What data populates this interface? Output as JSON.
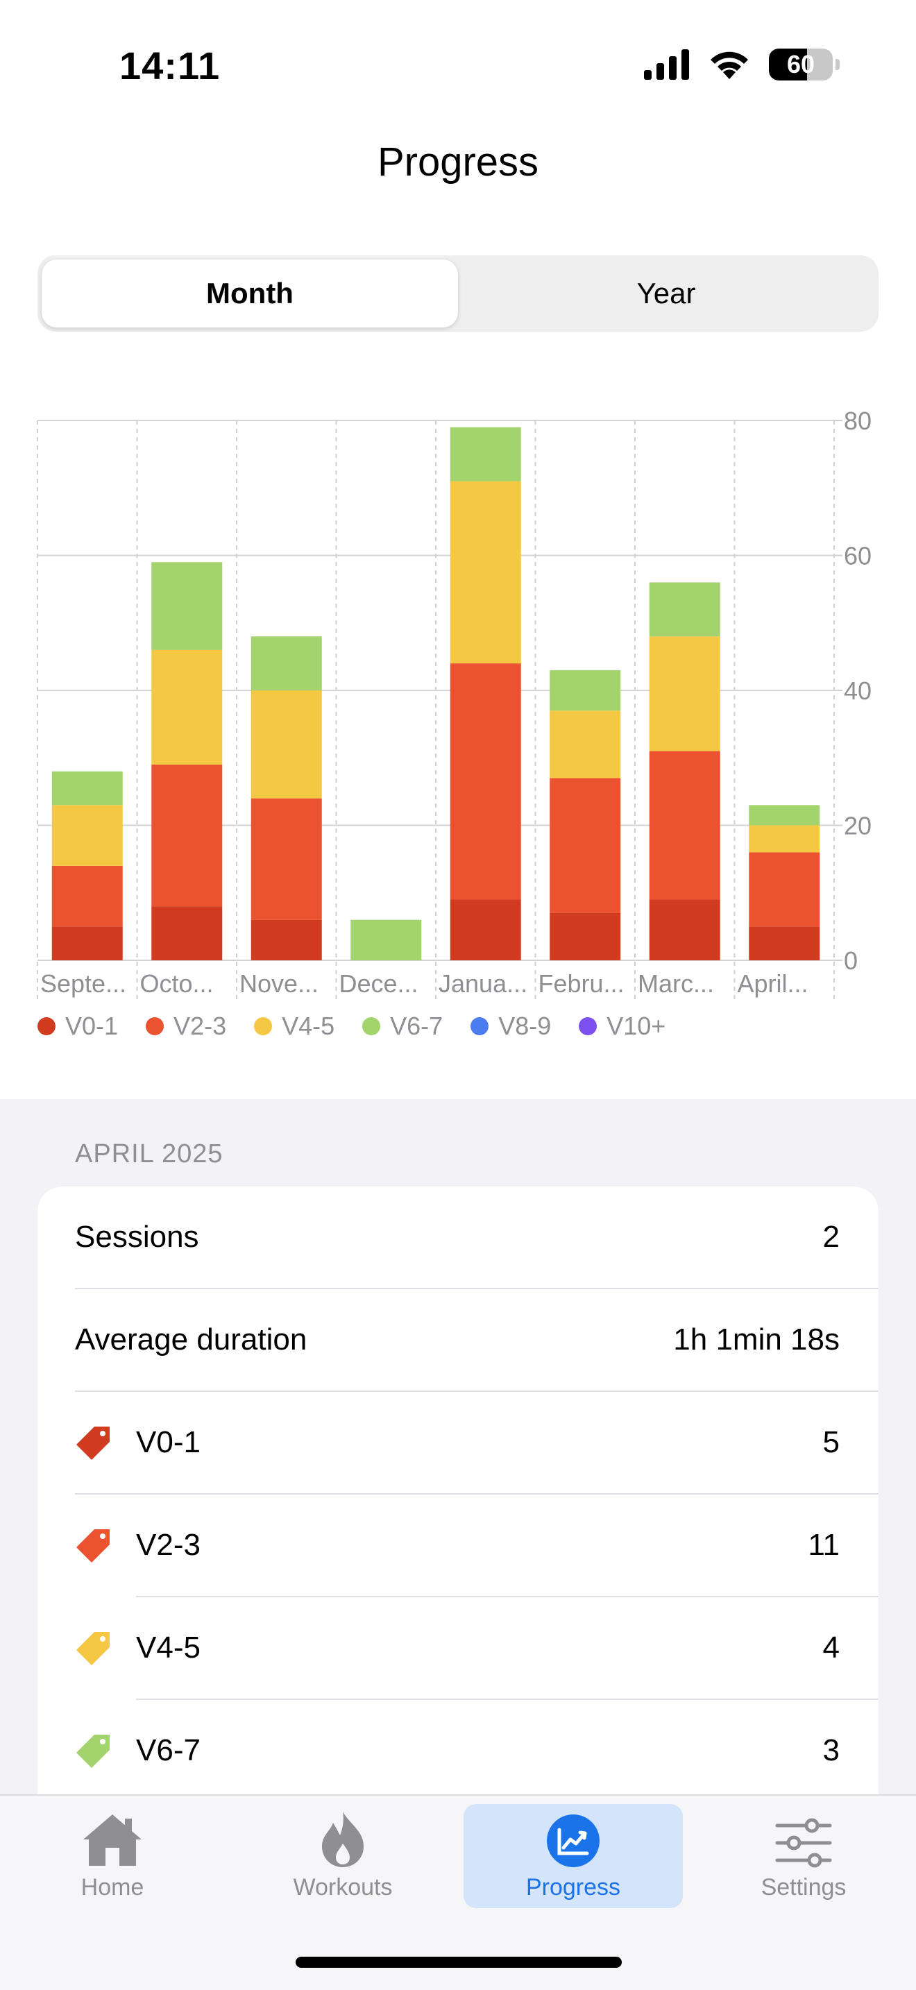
{
  "status_bar": {
    "time": "14:11",
    "battery": "60",
    "battery_level": 0.6
  },
  "page": {
    "title": "Progress"
  },
  "segmented": {
    "options": [
      "Month",
      "Year"
    ],
    "selected": "Month"
  },
  "chart_data": {
    "type": "bar",
    "stacked": true,
    "categories": [
      "Septe...",
      "Octo...",
      "Nove...",
      "Dece...",
      "Janua...",
      "Febru...",
      "Marc...",
      "April..."
    ],
    "series": [
      {
        "name": "V0-1",
        "color": "#d13b20",
        "values": [
          5,
          8,
          6,
          0,
          9,
          7,
          9,
          5
        ]
      },
      {
        "name": "V2-3",
        "color": "#ea5230",
        "values": [
          9,
          21,
          18,
          0,
          35,
          20,
          22,
          11
        ]
      },
      {
        "name": "V4-5",
        "color": "#f5c843",
        "values": [
          9,
          17,
          16,
          0,
          27,
          10,
          17,
          4
        ]
      },
      {
        "name": "V6-7",
        "color": "#a3d36d",
        "values": [
          5,
          13,
          8,
          6,
          8,
          6,
          8,
          3
        ]
      },
      {
        "name": "V8-9",
        "color": "#4b7cf0",
        "values": [
          0,
          0,
          0,
          0,
          0,
          0,
          0,
          0
        ]
      },
      {
        "name": "V10+",
        "color": "#7b4ff0",
        "values": [
          0,
          0,
          0,
          0,
          0,
          0,
          0,
          0
        ]
      }
    ],
    "ylim": [
      0,
      80
    ],
    "yticks": [
      0,
      20,
      40,
      60,
      80
    ],
    "y_axis_position": "right",
    "grid": true,
    "legend_position": "bottom-left"
  },
  "stats": {
    "section_header": "APRIL 2025",
    "rows": [
      {
        "label": "Sessions",
        "value": "2"
      },
      {
        "label": "Average duration",
        "value": "1h 1min 18s"
      }
    ],
    "grade_rows": [
      {
        "label": "V0-1",
        "value": "5",
        "color": "#d13b20"
      },
      {
        "label": "V2-3",
        "value": "11",
        "color": "#ea5230"
      },
      {
        "label": "V4-5",
        "value": "4",
        "color": "#f5c843"
      },
      {
        "label": "V6-7",
        "value": "3",
        "color": "#a3d36d"
      }
    ]
  },
  "tabbar": {
    "items": [
      {
        "label": "Home",
        "icon": "house-icon"
      },
      {
        "label": "Workouts",
        "icon": "flame-icon"
      },
      {
        "label": "Progress",
        "icon": "chart-icon",
        "active": true
      },
      {
        "label": "Settings",
        "icon": "sliders-icon"
      }
    ]
  }
}
